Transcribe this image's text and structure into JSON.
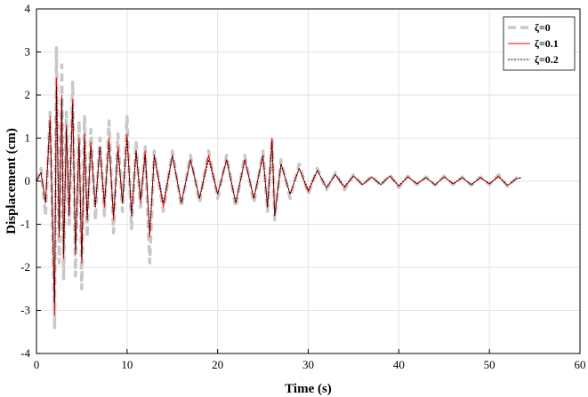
{
  "chart_data": {
    "type": "line",
    "title": "",
    "xlabel": "Time (s)",
    "ylabel": "Displacement (cm)",
    "xlim": [
      0,
      60
    ],
    "ylim": [
      -4,
      4
    ],
    "xticks": [
      0,
      10,
      20,
      30,
      40,
      50,
      60
    ],
    "yticks": [
      -4,
      -3,
      -2,
      -1,
      0,
      1,
      2,
      3,
      4
    ],
    "grid": true,
    "legend_position": "top-right",
    "series": [
      {
        "name": "ζ=0",
        "color": "#c8c8c8",
        "style": "dashed-thick",
        "x": [
          0,
          0.5,
          1,
          1.5,
          2.0,
          2.2,
          2.5,
          2.8,
          3.0,
          3.3,
          3.6,
          4.0,
          4.3,
          4.7,
          5.0,
          5.3,
          5.6,
          6.0,
          6.5,
          7.0,
          7.5,
          8.0,
          8.5,
          9.0,
          9.5,
          10.0,
          10.5,
          11.0,
          11.5,
          12.0,
          12.5,
          13.0,
          14.0,
          15.0,
          16.0,
          17.0,
          18.0,
          19.0,
          20.0,
          21.0,
          22.0,
          23.0,
          24.0,
          25.0,
          25.5,
          26.0,
          26.3,
          27.0,
          28.0,
          29.0,
          30.0,
          31.0,
          32.0,
          33.0,
          34.0,
          35.0,
          36.0,
          37.0,
          38.0,
          39.0,
          40.0,
          41.0,
          42.0,
          43.0,
          44.0,
          45.0,
          46.0,
          47.0,
          48.0,
          49.0,
          50.0,
          51.0,
          52.0,
          53.0,
          53.5
        ],
        "y": [
          0,
          0.3,
          -0.8,
          1.6,
          -3.4,
          3.1,
          -1.9,
          2.7,
          -2.3,
          1.6,
          -1.0,
          2.3,
          -2.2,
          1.4,
          -2.5,
          1.5,
          -1.3,
          1.2,
          -0.9,
          1.0,
          -0.8,
          1.4,
          -1.2,
          1.1,
          -0.7,
          1.5,
          -1.1,
          0.9,
          -0.6,
          0.8,
          -1.9,
          0.7,
          -0.7,
          0.7,
          -0.6,
          0.6,
          -0.5,
          0.7,
          -0.4,
          0.6,
          -0.6,
          0.6,
          -0.5,
          0.7,
          -0.7,
          1.0,
          -0.9,
          0.5,
          -0.4,
          0.4,
          -0.3,
          0.3,
          -0.2,
          0.2,
          -0.2,
          0.15,
          -0.1,
          0.12,
          -0.1,
          0.15,
          -0.15,
          0.12,
          -0.08,
          0.1,
          -0.1,
          0.12,
          -0.08,
          0.1,
          -0.1,
          0.1,
          -0.08,
          0.15,
          -0.12,
          0.08,
          0.1
        ]
      },
      {
        "name": "ζ=0.1",
        "color": "#ff0000",
        "style": "solid-thin",
        "x": [
          0,
          0.5,
          1,
          1.5,
          2.0,
          2.2,
          2.5,
          2.8,
          3.0,
          3.3,
          3.6,
          4.0,
          4.3,
          4.7,
          5.0,
          5.3,
          5.6,
          6.0,
          6.5,
          7.0,
          7.5,
          8.0,
          8.5,
          9.0,
          9.5,
          10.0,
          10.5,
          11.0,
          11.5,
          12.0,
          12.5,
          13.0,
          14.0,
          15.0,
          16.0,
          17.0,
          18.0,
          19.0,
          20.0,
          21.0,
          22.0,
          23.0,
          24.0,
          25.0,
          25.5,
          26.0,
          26.3,
          27.0,
          28.0,
          29.0,
          30.0,
          31.0,
          32.0,
          33.0,
          34.0,
          35.0,
          36.0,
          37.0,
          38.0,
          39.0,
          40.0,
          41.0,
          42.0,
          43.0,
          44.0,
          45.0,
          46.0,
          47.0,
          48.0,
          49.0,
          50.0,
          51.0,
          52.0,
          53.0,
          53.5
        ],
        "y": [
          0,
          0.2,
          -0.5,
          1.5,
          -3.1,
          2.4,
          -1.3,
          2.0,
          -1.8,
          1.3,
          -0.8,
          1.9,
          -1.7,
          1.0,
          -1.9,
          1.1,
          -0.9,
          0.9,
          -0.6,
          0.8,
          -0.6,
          1.0,
          -0.9,
          0.8,
          -0.5,
          1.1,
          -0.8,
          0.7,
          -0.5,
          0.7,
          -1.3,
          0.6,
          -0.6,
          0.6,
          -0.5,
          0.5,
          -0.4,
          0.6,
          -0.3,
          0.5,
          -0.5,
          0.5,
          -0.4,
          0.6,
          -0.6,
          1.0,
          -0.8,
          0.4,
          -0.3,
          0.3,
          -0.25,
          0.25,
          -0.15,
          0.15,
          -0.15,
          0.12,
          -0.08,
          0.1,
          -0.08,
          0.12,
          -0.12,
          0.1,
          -0.06,
          0.08,
          -0.08,
          0.1,
          -0.06,
          0.08,
          -0.08,
          0.08,
          -0.06,
          0.12,
          -0.1,
          0.06,
          0.08
        ]
      },
      {
        "name": "ζ=0.2",
        "color": "#000000",
        "style": "dotted-thin",
        "x": [
          0,
          0.5,
          1,
          1.5,
          2.0,
          2.2,
          2.5,
          2.8,
          3.0,
          3.3,
          3.6,
          4.0,
          4.3,
          4.7,
          5.0,
          5.3,
          5.6,
          6.0,
          6.5,
          7.0,
          7.5,
          8.0,
          8.5,
          9.0,
          9.5,
          10.0,
          10.5,
          11.0,
          11.5,
          12.0,
          12.5,
          13.0,
          14.0,
          15.0,
          16.0,
          17.0,
          18.0,
          19.0,
          20.0,
          21.0,
          22.0,
          23.0,
          24.0,
          25.0,
          25.5,
          26.0,
          26.3,
          27.0,
          28.0,
          29.0,
          30.0,
          31.0,
          32.0,
          33.0,
          34.0,
          35.0,
          36.0,
          37.0,
          38.0,
          39.0,
          40.0,
          41.0,
          42.0,
          43.0,
          44.0,
          45.0,
          46.0,
          47.0,
          48.0,
          49.0,
          50.0,
          51.0,
          52.0,
          53.0,
          53.5
        ],
        "y": [
          0,
          0.2,
          -0.5,
          1.4,
          -2.8,
          2.2,
          -1.2,
          1.9,
          -1.7,
          1.2,
          -0.8,
          1.8,
          -1.6,
          0.9,
          -1.8,
          1.0,
          -0.9,
          0.8,
          -0.6,
          0.8,
          -0.5,
          0.9,
          -0.8,
          0.7,
          -0.5,
          1.0,
          -0.8,
          0.7,
          -0.4,
          0.6,
          -1.2,
          0.6,
          -0.5,
          0.6,
          -0.5,
          0.5,
          -0.4,
          0.5,
          -0.3,
          0.5,
          -0.5,
          0.5,
          -0.4,
          0.6,
          -0.6,
          0.9,
          -0.8,
          0.4,
          -0.3,
          0.3,
          -0.2,
          0.25,
          -0.15,
          0.15,
          -0.12,
          0.12,
          -0.08,
          0.1,
          -0.08,
          0.12,
          -0.1,
          0.1,
          -0.06,
          0.08,
          -0.08,
          0.1,
          -0.06,
          0.08,
          -0.08,
          0.08,
          -0.06,
          0.1,
          -0.1,
          0.06,
          0.08
        ]
      }
    ]
  }
}
